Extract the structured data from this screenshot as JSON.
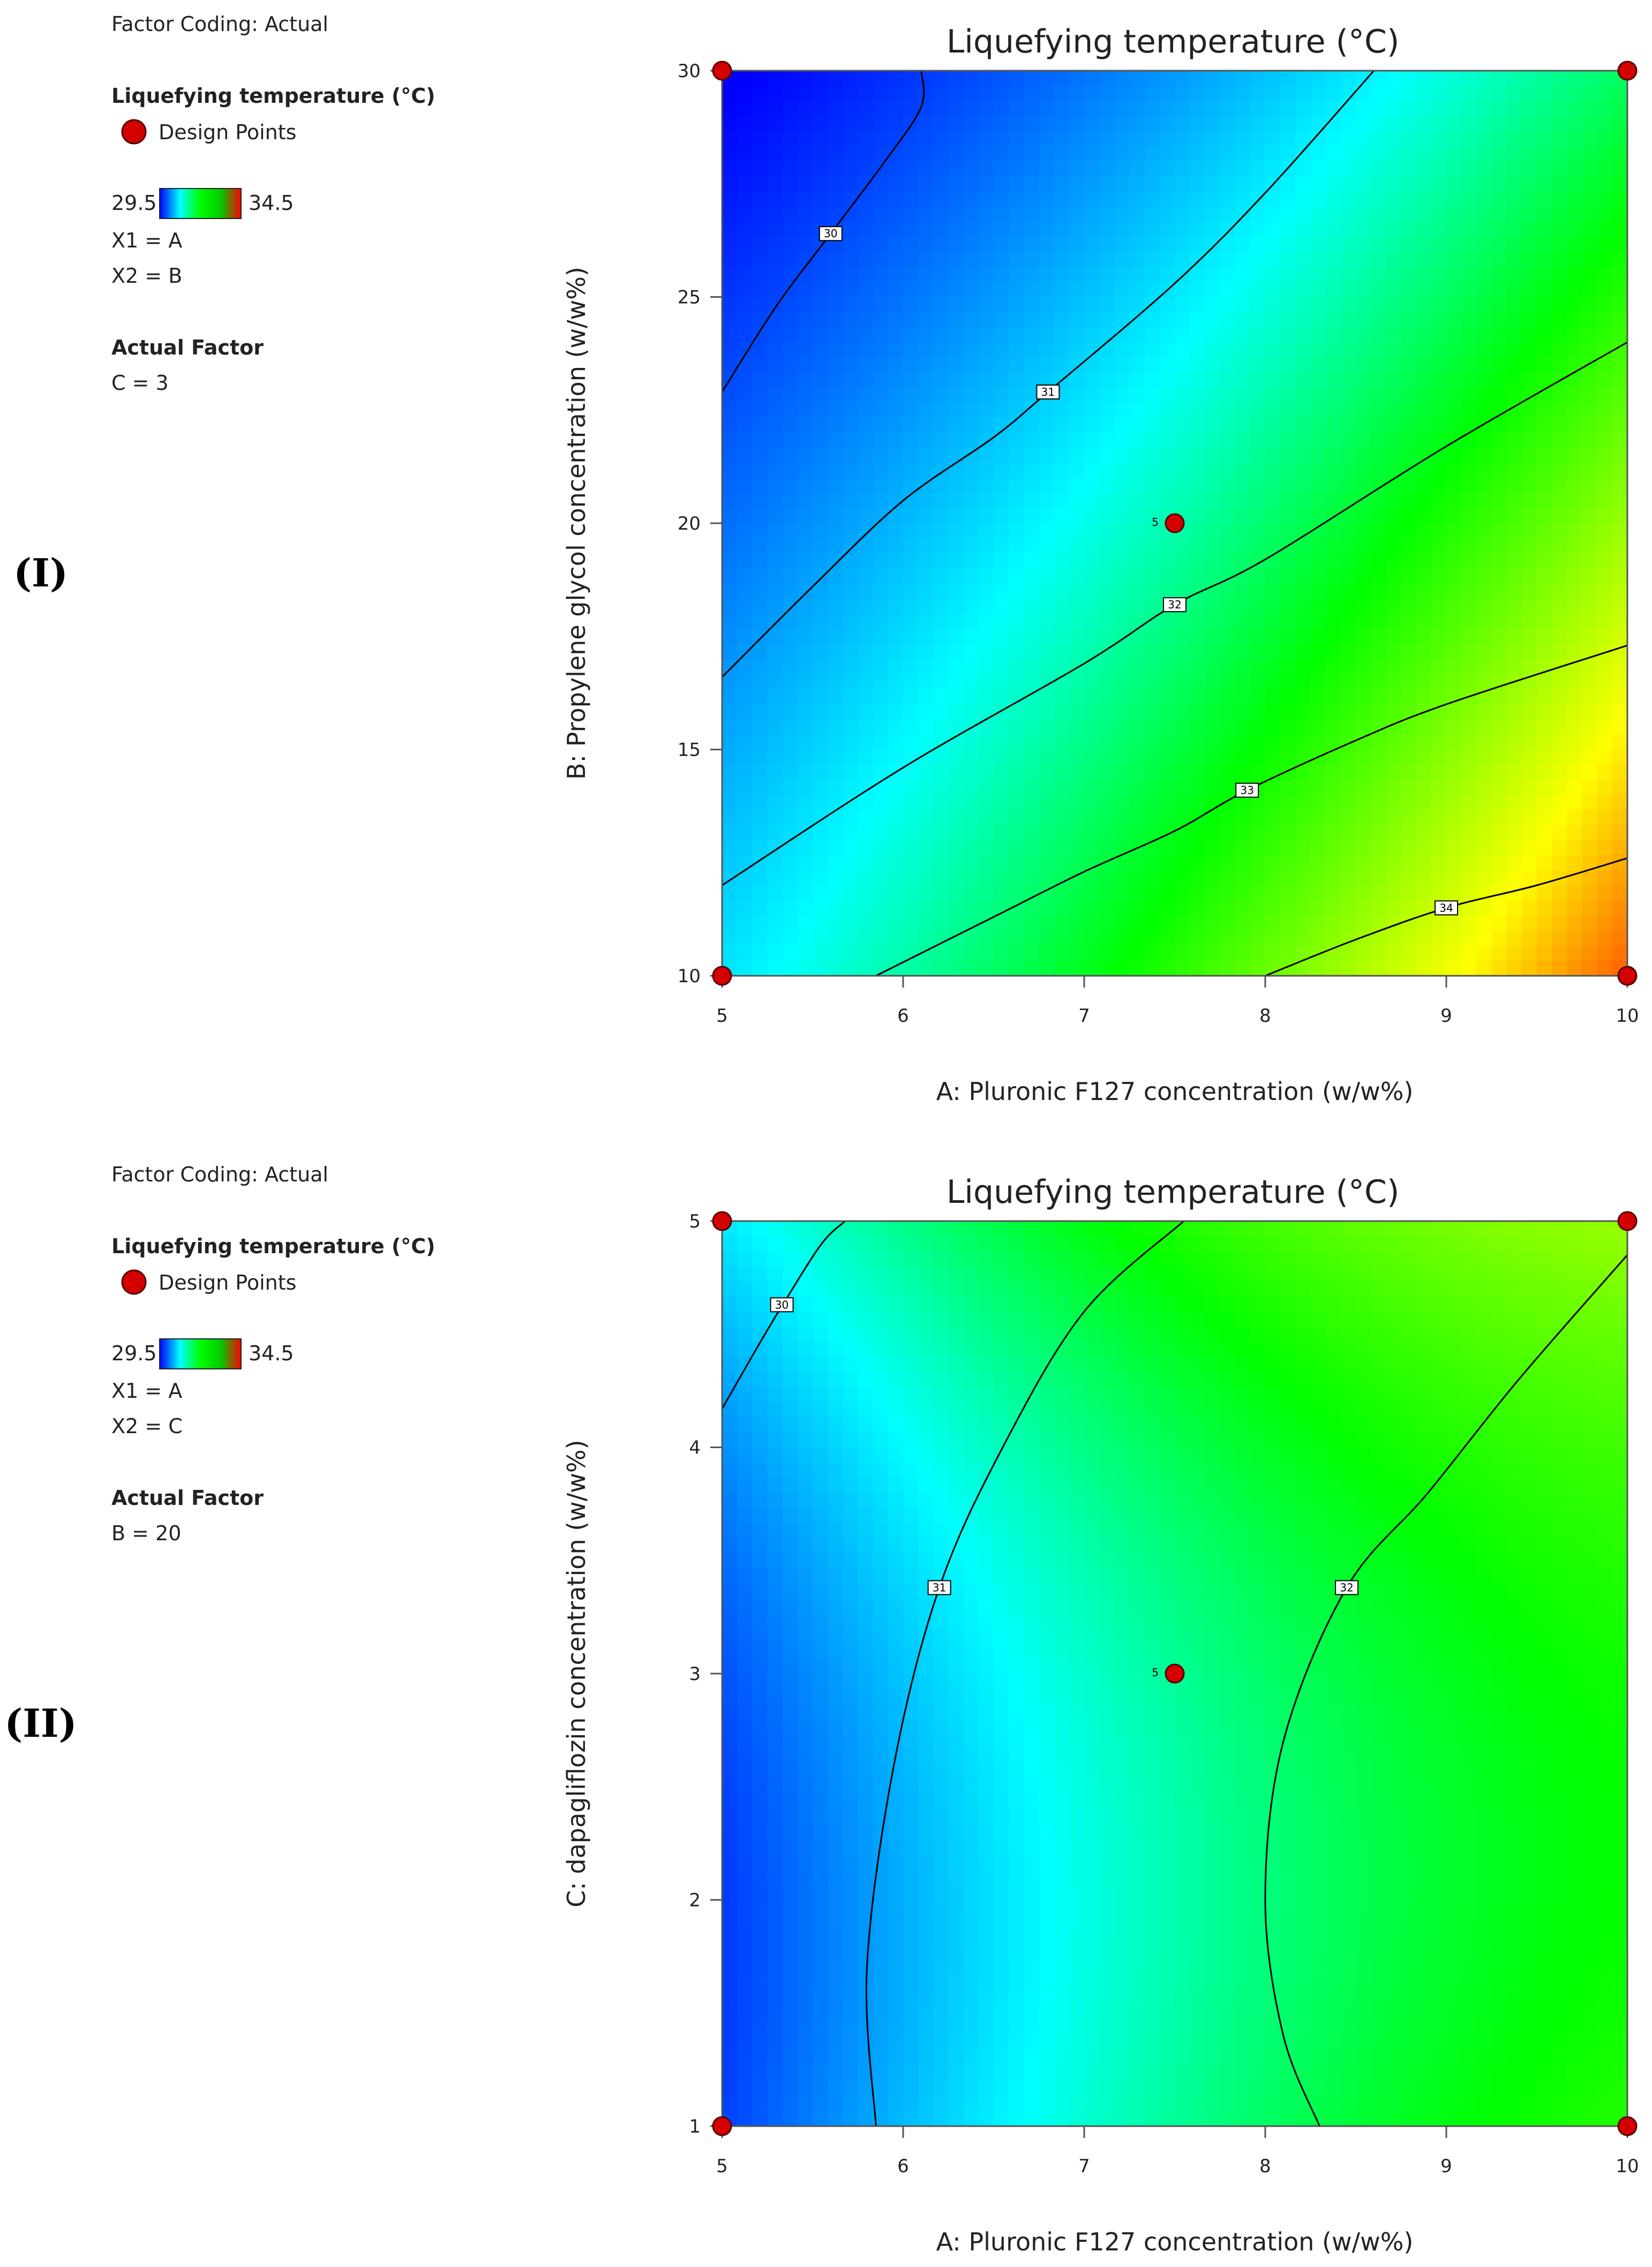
{
  "colors": {
    "low": "#0000ff",
    "mid_cyan": "#00ffff",
    "mid_green": "#00ff00",
    "mid_yellow": "#ffff00",
    "high": "#ff0000",
    "design_point": "#d40000",
    "low_text": "#0000ff",
    "high_text": "#ff0000"
  },
  "chart_data": [
    {
      "type": "contour",
      "panel_label": "(I)",
      "title": "Liquefying temperature (°C)",
      "xlabel": "A: Pluronic F127 concentration (w/w%)",
      "ylabel": "B: Propylene glycol concentration (w/w%)",
      "xlim": [
        5,
        10
      ],
      "ylim": [
        10,
        30
      ],
      "x_ticks": [
        "5",
        "6",
        "7",
        "8",
        "9",
        "10"
      ],
      "y_ticks": [
        "10",
        "15",
        "20",
        "25",
        "30"
      ],
      "color_range": [
        29.5,
        34.5
      ],
      "legend": {
        "factor_coding": "Factor Coding: Actual",
        "response_name": "Liquefying temperature (°C)",
        "design_points_label": "Design Points",
        "low_label": "29.5",
        "high_label": "34.5",
        "x1": "X1 = A",
        "x2": "X2 = B",
        "actual_factor_heading": "Actual Factor",
        "actual_factor": "C = 3"
      },
      "contour_levels": [
        {
          "level": 30,
          "label": "30",
          "points": [
            [
              5,
              22.9
            ],
            [
              5.3,
              24.8
            ],
            [
              5.6,
              26.4
            ],
            [
              5.9,
              28.0
            ],
            [
              6.1,
              29.2
            ],
            [
              6.1,
              30
            ]
          ]
        },
        {
          "level": 31,
          "label": "31",
          "points": [
            [
              5,
              16.6
            ],
            [
              5.5,
              18.6
            ],
            [
              6.0,
              20.5
            ],
            [
              6.5,
              21.9
            ],
            [
              6.8,
              22.9
            ],
            [
              7.5,
              25.3
            ],
            [
              8.0,
              27.3
            ],
            [
              8.6,
              30
            ]
          ]
        },
        {
          "level": 32,
          "label": "32",
          "points": [
            [
              5,
              12.0
            ],
            [
              6.0,
              14.6
            ],
            [
              7.0,
              16.9
            ],
            [
              7.5,
              18.2
            ],
            [
              8.0,
              19.2
            ],
            [
              9.0,
              21.7
            ],
            [
              10,
              24.0
            ]
          ]
        },
        {
          "level": 33,
          "label": "33",
          "points": [
            [
              5.85,
              10
            ],
            [
              6.5,
              11.3
            ],
            [
              7.0,
              12.3
            ],
            [
              7.5,
              13.2
            ],
            [
              7.9,
              14.1
            ],
            [
              8.5,
              15.2
            ],
            [
              9.0,
              16.0
            ],
            [
              10,
              17.3
            ]
          ]
        },
        {
          "level": 34,
          "label": "34",
          "points": [
            [
              8.0,
              10
            ],
            [
              8.5,
              10.8
            ],
            [
              9.0,
              11.5
            ],
            [
              9.5,
              12.0
            ],
            [
              10,
              12.6
            ]
          ]
        }
      ],
      "contour_label_positions": [
        {
          "label": "30",
          "x": 5.6,
          "y": 26.4
        },
        {
          "label": "31",
          "x": 6.8,
          "y": 22.9
        },
        {
          "label": "32",
          "x": 7.5,
          "y": 18.2
        },
        {
          "label": "33",
          "x": 7.9,
          "y": 14.1
        },
        {
          "label": "34",
          "x": 9.0,
          "y": 11.5
        }
      ],
      "design_points": [
        {
          "x": 5,
          "y": 30,
          "replicates": ""
        },
        {
          "x": 10,
          "y": 30,
          "replicates": ""
        },
        {
          "x": 7.5,
          "y": 20,
          "replicates": "5"
        },
        {
          "x": 5,
          "y": 10,
          "replicates": ""
        },
        {
          "x": 10,
          "y": 10,
          "replicates": ""
        }
      ]
    },
    {
      "type": "contour",
      "panel_label": "(II)",
      "title": "Liquefying temperature (°C)",
      "xlabel": "A: Pluronic F127 concentration (w/w%)",
      "ylabel": "C: dapagliflozin concentration (w/w%)",
      "xlim": [
        5,
        10
      ],
      "ylim": [
        1,
        5
      ],
      "x_ticks": [
        "5",
        "6",
        "7",
        "8",
        "9",
        "10"
      ],
      "y_ticks": [
        "1",
        "2",
        "3",
        "4",
        "5"
      ],
      "color_range": [
        29.5,
        34.5
      ],
      "legend": {
        "factor_coding": "Factor Coding: Actual",
        "response_name": "Liquefying temperature (°C)",
        "design_points_label": "Design Points",
        "low_label": "29.5",
        "high_label": "34.5",
        "x1": "X1 = A",
        "x2": "X2 = C",
        "actual_factor_heading": "Actual Factor",
        "actual_factor": "B = 20"
      },
      "contour_levels": [
        {
          "level": 30,
          "label": "30",
          "points": [
            [
              5,
              4.17
            ],
            [
              5.2,
              4.45
            ],
            [
              5.35,
              4.65
            ],
            [
              5.55,
              4.9
            ],
            [
              5.68,
              5.0
            ]
          ]
        },
        {
          "level": 31,
          "label": "31",
          "points": [
            [
              7.55,
              5.0
            ],
            [
              7.0,
              4.6
            ],
            [
              6.55,
              4.0
            ],
            [
              6.2,
              3.38
            ],
            [
              5.95,
              2.6
            ],
            [
              5.8,
              1.7
            ],
            [
              5.85,
              1.0
            ]
          ]
        },
        {
          "level": 32,
          "label": "32",
          "points": [
            [
              10,
              4.85
            ],
            [
              9.4,
              4.3
            ],
            [
              8.9,
              3.8
            ],
            [
              8.45,
              3.38
            ],
            [
              8.1,
              2.7
            ],
            [
              8.0,
              2.0
            ],
            [
              8.1,
              1.4
            ],
            [
              8.3,
              1.0
            ]
          ]
        }
      ],
      "contour_label_positions": [
        {
          "label": "30",
          "x": 5.33,
          "y": 4.63
        },
        {
          "label": "31",
          "x": 6.2,
          "y": 3.38
        },
        {
          "label": "32",
          "x": 8.45,
          "y": 3.38
        }
      ],
      "design_points": [
        {
          "x": 5,
          "y": 5,
          "replicates": ""
        },
        {
          "x": 10,
          "y": 5,
          "replicates": ""
        },
        {
          "x": 7.5,
          "y": 3,
          "replicates": "5"
        },
        {
          "x": 5,
          "y": 1,
          "replicates": ""
        },
        {
          "x": 10,
          "y": 1,
          "replicates": ""
        }
      ]
    }
  ]
}
